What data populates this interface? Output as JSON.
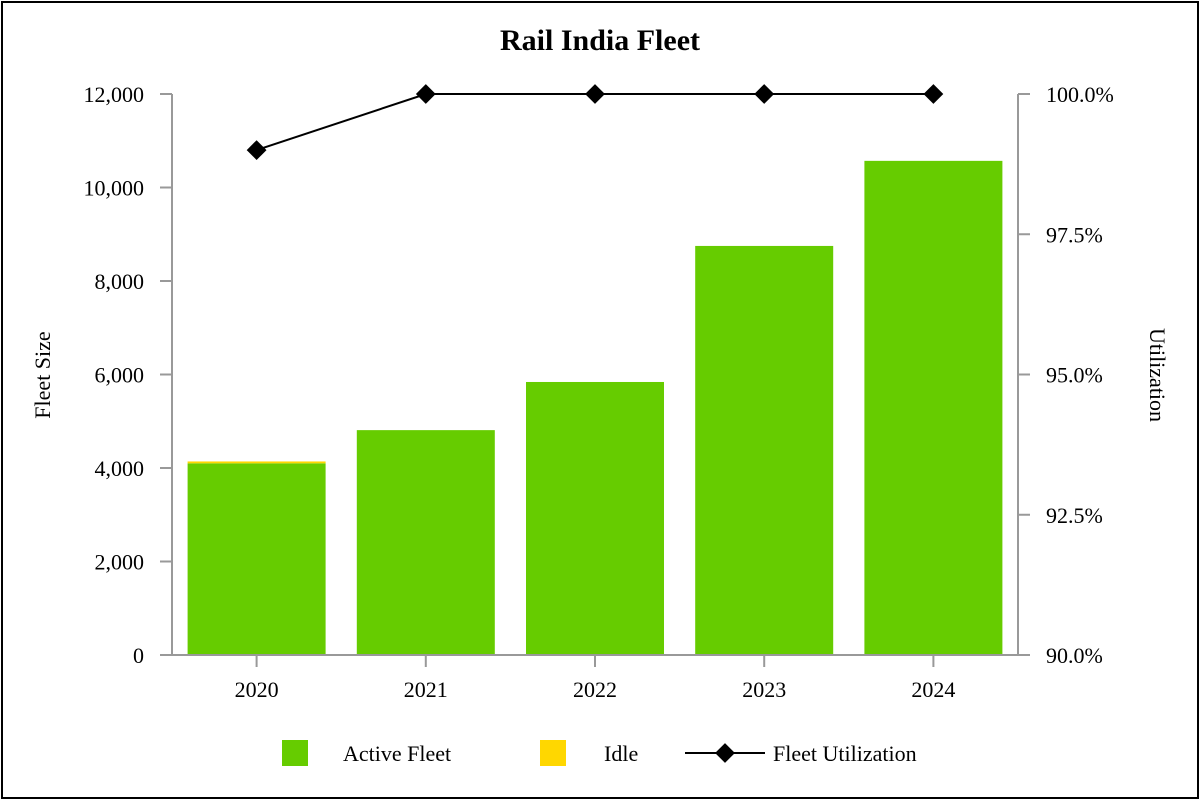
{
  "chart_data": {
    "type": "bar",
    "title": "Rail India Fleet",
    "categories": [
      "2020",
      "2021",
      "2022",
      "2023",
      "2024"
    ],
    "series": [
      {
        "name": "Active Fleet",
        "kind": "bar",
        "stack": true,
        "color": "#66cc00",
        "values": [
          4100,
          4810,
          5840,
          8750,
          10570
        ]
      },
      {
        "name": "Idle",
        "kind": "bar",
        "stack": true,
        "color": "#ffd700",
        "values": [
          40,
          0,
          0,
          0,
          0
        ]
      },
      {
        "name": "Fleet Utilization",
        "kind": "line",
        "axis": "right",
        "color": "#000000",
        "values": [
          99.0,
          100.0,
          100.0,
          100.0,
          100.0
        ]
      }
    ],
    "ylabel": "Fleet Size",
    "ylim": [
      0,
      12000
    ],
    "yticks": [
      "0",
      "2,000",
      "4,000",
      "6,000",
      "8,000",
      "10,000",
      "12,000"
    ],
    "y2label": "Utilization",
    "y2lim": [
      90,
      100
    ],
    "y2ticks": [
      "90.0%",
      "92.5%",
      "95.0%",
      "97.5%",
      "100.0%"
    ],
    "grid": false,
    "legend_position": "bottom"
  }
}
